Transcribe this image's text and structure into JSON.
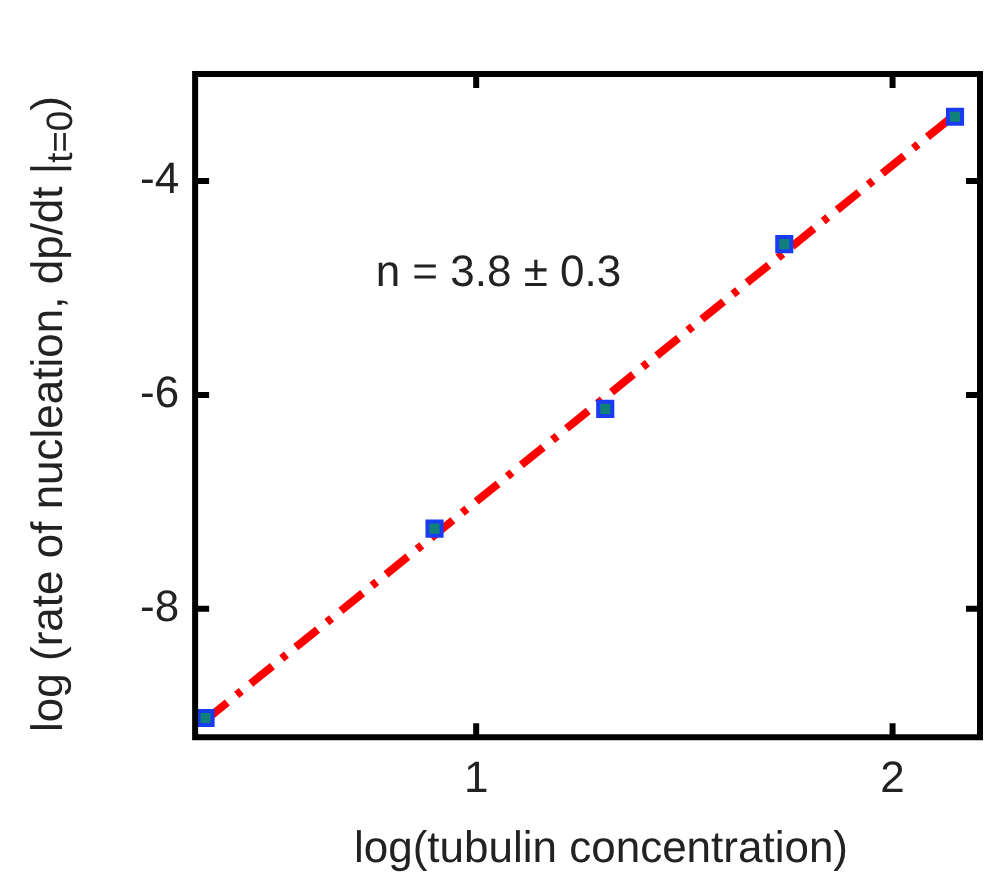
{
  "chart_data": {
    "type": "scatter",
    "xlabel": "log(tubulin concentration)",
    "ylabel": "log (rate of nucleation, dp/dt |$_{t=0}$)",
    "annotations": [
      "n = 3.8 ± 0.3"
    ],
    "xlim": [
      0.325,
      2.21
    ],
    "xticks": [
      1,
      2
    ],
    "ylim": [
      -9.2,
      -3.0
    ],
    "yticks": [
      -8,
      -6,
      -4
    ],
    "grid": false,
    "legend": false,
    "series": [
      {
        "type": "scatter",
        "marker": "square",
        "color": "#1a3cf0",
        "x": [
          0.35,
          0.9,
          1.31,
          1.74,
          2.15
        ],
        "values": [
          -9.02,
          -7.25,
          -6.13,
          -4.59,
          -3.4
        ]
      },
      {
        "type": "line",
        "marker": "none",
        "line_style": "dashed",
        "color": "#ff0000",
        "x": [
          0.35,
          2.15
        ],
        "values": [
          -9.04,
          -3.38
        ]
      }
    ]
  }
}
